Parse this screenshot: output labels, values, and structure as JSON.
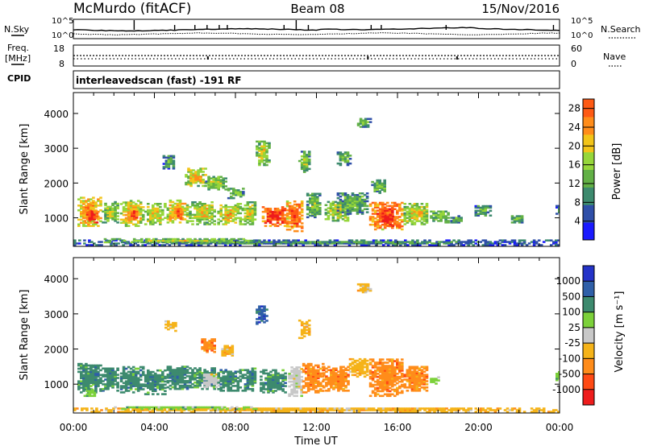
{
  "header": {
    "station": "McMurdo (fitACF)",
    "beam": "Beam 08",
    "date": "15/Nov/2016"
  },
  "summary_panel": {
    "nsky_label": "N.Sky",
    "nsearch_label": "N.Search",
    "count_ticks_left": [
      "10^5",
      "10^0"
    ],
    "count_ticks_right": [
      "10^5",
      "10^0"
    ],
    "freq_label_1": "Freq.",
    "freq_label_2": "[MHz]",
    "freq_ticks": [
      "18",
      "8"
    ],
    "nave_label": "Nave",
    "nave_ticks": [
      "60",
      "0"
    ],
    "cpid_label": "CPID",
    "cpid_text": "interleavedscan (fast) -191 RF"
  },
  "colors": {
    "power": [
      "#1a1aff",
      "#2f4fa8",
      "#3d8a6e",
      "#62b046",
      "#96d63a",
      "#f2c419",
      "#ff8c1a",
      "#ff5a14",
      "#ee1c1c"
    ],
    "velocity": [
      "#ee1c1c",
      "#ff4a14",
      "#ff8c1a",
      "#f5b319",
      "#c8c8c8",
      "#7cd13a",
      "#3d8a6e",
      "#2f5fa8",
      "#2433c8"
    ]
  },
  "chart_data": [
    {
      "type": "heatmap",
      "name": "power",
      "ylabel": "Slant Range [km]",
      "xlabel": "Time UT",
      "x_ticks": [
        "00:00",
        "04:00",
        "08:00",
        "12:00",
        "16:00",
        "20:00",
        "00:00"
      ],
      "x_range_hours": [
        0,
        24
      ],
      "y_ticks": [
        1000,
        2000,
        3000,
        4000
      ],
      "ylim": [
        180,
        4600
      ],
      "colorbar": {
        "label": "Power [dB]",
        "ticks": [
          "4",
          "8",
          "12",
          "16",
          "20",
          "24",
          "28"
        ],
        "range": [
          0,
          30
        ]
      },
      "patches": [
        {
          "t0": 0.2,
          "t1": 1.3,
          "r0": 750,
          "r1": 1600,
          "v": 20
        },
        {
          "t0": 0.5,
          "t1": 1.2,
          "r0": 850,
          "r1": 1200,
          "v": 27
        },
        {
          "t0": 1.4,
          "t1": 2.2,
          "r0": 850,
          "r1": 1450,
          "v": 14
        },
        {
          "t0": 2.3,
          "t1": 3.4,
          "r0": 750,
          "r1": 1500,
          "v": 18
        },
        {
          "t0": 2.7,
          "t1": 3.1,
          "r0": 900,
          "r1": 1250,
          "v": 26
        },
        {
          "t0": 3.5,
          "t1": 4.5,
          "r0": 800,
          "r1": 1400,
          "v": 16
        },
        {
          "t0": 4.6,
          "t1": 5.6,
          "r0": 850,
          "r1": 1500,
          "v": 19
        },
        {
          "t0": 5.0,
          "t1": 5.3,
          "r0": 950,
          "r1": 1250,
          "v": 25
        },
        {
          "t0": 5.7,
          "t1": 7.0,
          "r0": 800,
          "r1": 1450,
          "v": 16
        },
        {
          "t0": 7.1,
          "t1": 8.2,
          "r0": 800,
          "r1": 1400,
          "v": 17
        },
        {
          "t0": 8.3,
          "t1": 9.0,
          "r0": 800,
          "r1": 1450,
          "v": 15
        },
        {
          "t0": 9.3,
          "t1": 10.5,
          "r0": 750,
          "r1": 1300,
          "v": 26
        },
        {
          "t0": 10.5,
          "t1": 11.3,
          "r0": 600,
          "r1": 1500,
          "v": 23
        },
        {
          "t0": 11.5,
          "t1": 12.2,
          "r0": 1000,
          "r1": 1700,
          "v": 12
        },
        {
          "t0": 12.4,
          "t1": 13.5,
          "r0": 900,
          "r1": 1450,
          "v": 15
        },
        {
          "t0": 13.0,
          "t1": 14.5,
          "r0": 1100,
          "r1": 1700,
          "v": 11
        },
        {
          "t0": 14.6,
          "t1": 16.2,
          "r0": 650,
          "r1": 1450,
          "v": 24
        },
        {
          "t0": 15.1,
          "t1": 15.7,
          "r0": 750,
          "r1": 1150,
          "v": 28
        },
        {
          "t0": 16.3,
          "t1": 17.5,
          "r0": 800,
          "r1": 1400,
          "v": 16
        },
        {
          "t0": 17.6,
          "t1": 18.5,
          "r0": 850,
          "r1": 1200,
          "v": 12
        },
        {
          "t0": 18.6,
          "t1": 19.2,
          "r0": 850,
          "r1": 1050,
          "v": 10
        },
        {
          "t0": 21.6,
          "t1": 22.2,
          "r0": 850,
          "r1": 1050,
          "v": 12
        },
        {
          "t0": 23.8,
          "t1": 24.0,
          "r0": 1100,
          "r1": 1350,
          "v": 9
        },
        {
          "t0": 5.5,
          "t1": 6.5,
          "r0": 1900,
          "r1": 2400,
          "v": 17
        },
        {
          "t0": 6.5,
          "t1": 7.5,
          "r0": 1800,
          "r1": 2200,
          "v": 14
        },
        {
          "t0": 7.6,
          "t1": 8.4,
          "r0": 1550,
          "r1": 1850,
          "v": 12
        },
        {
          "t0": 4.4,
          "t1": 5.0,
          "r0": 2400,
          "r1": 2800,
          "v": 10
        },
        {
          "t0": 9.0,
          "t1": 9.6,
          "r0": 2500,
          "r1": 3200,
          "v": 15
        },
        {
          "t0": 11.1,
          "t1": 11.6,
          "r0": 2300,
          "r1": 2900,
          "v": 13
        },
        {
          "t0": 13.0,
          "t1": 13.6,
          "r0": 2500,
          "r1": 2900,
          "v": 11
        },
        {
          "t0": 14.0,
          "t1": 14.6,
          "r0": 3600,
          "r1": 3850,
          "v": 12
        },
        {
          "t0": 14.7,
          "t1": 15.4,
          "r0": 1700,
          "r1": 2100,
          "v": 11
        },
        {
          "t0": 19.8,
          "t1": 20.6,
          "r0": 1050,
          "r1": 1350,
          "v": 10
        },
        {
          "t0": 0.0,
          "t1": 24.0,
          "r0": 200,
          "r1": 340,
          "v": 8
        },
        {
          "t0": 1.5,
          "t1": 9.0,
          "r0": 280,
          "r1": 380,
          "v": 14
        }
      ]
    },
    {
      "type": "heatmap",
      "name": "velocity",
      "ylabel": "Slant Range [km]",
      "xlabel": "Time UT",
      "x_ticks": [
        "00:00",
        "04:00",
        "08:00",
        "12:00",
        "16:00",
        "20:00",
        "00:00"
      ],
      "x_range_hours": [
        0,
        24
      ],
      "y_ticks": [
        1000,
        2000,
        3000,
        4000
      ],
      "ylim": [
        180,
        4600
      ],
      "colorbar": {
        "label": "Velocity [m s⁻¹]",
        "ticks": [
          "-1000",
          "-500",
          "-100",
          "-25",
          "25",
          "100",
          "500",
          "1000"
        ]
      },
      "patches": [
        {
          "t0": 0.2,
          "t1": 1.3,
          "r0": 750,
          "r1": 1600,
          "c": 6
        },
        {
          "t0": 0.5,
          "t1": 1.1,
          "r0": 650,
          "r1": 850,
          "c": 5
        },
        {
          "t0": 1.4,
          "t1": 2.2,
          "r0": 800,
          "r1": 1450,
          "c": 6
        },
        {
          "t0": 2.3,
          "t1": 3.4,
          "r0": 750,
          "r1": 1500,
          "c": 6
        },
        {
          "t0": 3.5,
          "t1": 4.5,
          "r0": 700,
          "r1": 1400,
          "c": 6
        },
        {
          "t0": 4.6,
          "t1": 5.6,
          "r0": 850,
          "r1": 1500,
          "c": 6
        },
        {
          "t0": 5.7,
          "t1": 7.0,
          "r0": 850,
          "r1": 1450,
          "c": 6
        },
        {
          "t0": 6.4,
          "t1": 7.2,
          "r0": 900,
          "r1": 1300,
          "c": 4
        },
        {
          "t0": 7.1,
          "t1": 8.2,
          "r0": 800,
          "r1": 1400,
          "c": 6
        },
        {
          "t0": 8.3,
          "t1": 9.0,
          "r0": 800,
          "r1": 1450,
          "c": 6
        },
        {
          "t0": 9.2,
          "t1": 10.5,
          "r0": 750,
          "r1": 1400,
          "c": 6
        },
        {
          "t0": 10.6,
          "t1": 11.3,
          "r0": 650,
          "r1": 1500,
          "c": 4
        },
        {
          "t0": 11.3,
          "t1": 12.3,
          "r0": 750,
          "r1": 1600,
          "c": 2
        },
        {
          "t0": 12.3,
          "t1": 13.6,
          "r0": 800,
          "r1": 1500,
          "c": 2
        },
        {
          "t0": 13.6,
          "t1": 14.5,
          "r0": 1200,
          "r1": 1700,
          "c": 3
        },
        {
          "t0": 14.6,
          "t1": 16.2,
          "r0": 650,
          "r1": 1700,
          "c": 2
        },
        {
          "t0": 16.3,
          "t1": 17.5,
          "r0": 800,
          "r1": 1500,
          "c": 2
        },
        {
          "t0": 17.6,
          "t1": 18.0,
          "r0": 1000,
          "r1": 1200,
          "c": 5
        },
        {
          "t0": 23.8,
          "t1": 24.0,
          "r0": 1100,
          "r1": 1350,
          "c": 5
        },
        {
          "t0": 6.3,
          "t1": 7.0,
          "r0": 1900,
          "r1": 2300,
          "c": 2
        },
        {
          "t0": 7.3,
          "t1": 7.9,
          "r0": 1800,
          "r1": 2100,
          "c": 3
        },
        {
          "t0": 4.5,
          "t1": 5.0,
          "r0": 2500,
          "r1": 2800,
          "c": 3
        },
        {
          "t0": 9.0,
          "t1": 9.5,
          "r0": 2700,
          "r1": 3200,
          "c": 7
        },
        {
          "t0": 11.1,
          "t1": 11.6,
          "r0": 2300,
          "r1": 2800,
          "c": 3
        },
        {
          "t0": 14.0,
          "t1": 14.6,
          "r0": 3600,
          "r1": 3850,
          "c": 3
        },
        {
          "t0": 0.0,
          "t1": 24.0,
          "r0": 200,
          "r1": 330,
          "c": 3
        },
        {
          "t0": 2.0,
          "t1": 9.0,
          "r0": 280,
          "r1": 360,
          "c": 5
        }
      ]
    }
  ]
}
